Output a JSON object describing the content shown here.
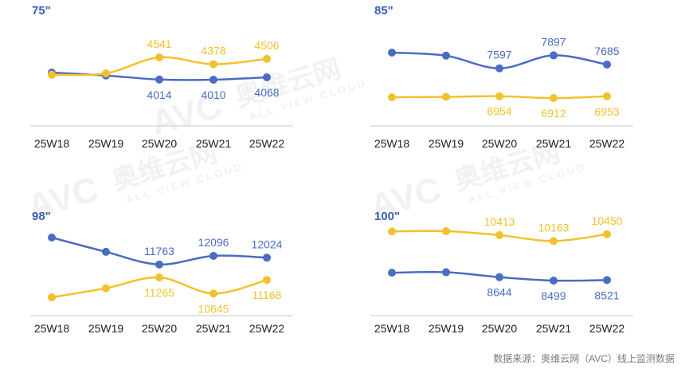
{
  "colors": {
    "series_a": "#4a6cc2",
    "series_b": "#f2c12e",
    "axis": "#c9c9c9"
  },
  "watermark": {
    "logo": "AVC",
    "name": "奥维云网",
    "tagline": "ALL VIEW CLOUD"
  },
  "source": "数据来源：奥维云网（AVC）线上监测数据",
  "chart_data": [
    {
      "type": "line",
      "title": "75\"",
      "categories": [
        "25W18",
        "25W19",
        "25W20",
        "25W21",
        "25W22"
      ],
      "series": [
        {
          "color": "#4a6cc2",
          "values": [
            4180,
            4110,
            4014,
            4010,
            4068
          ],
          "labels": [
            "",
            "",
            "4014",
            "4010",
            "4068"
          ],
          "label_position": "below"
        },
        {
          "color": "#f2c12e",
          "values": [
            4130,
            4160,
            4541,
            4378,
            4506
          ],
          "labels": [
            "",
            "",
            "4541",
            "4378",
            "4506"
          ],
          "label_position": "above"
        }
      ]
    },
    {
      "type": "line",
      "title": "85\"",
      "categories": [
        "25W18",
        "25W19",
        "25W20",
        "25W21",
        "25W22"
      ],
      "series": [
        {
          "color": "#4a6cc2",
          "values": [
            7960,
            7890,
            7597,
            7897,
            7685
          ],
          "labels": [
            "",
            "",
            "7597",
            "7897",
            "7685"
          ],
          "label_position": "above"
        },
        {
          "color": "#f2c12e",
          "values": [
            6930,
            6940,
            6954,
            6912,
            6953
          ],
          "labels": [
            "",
            "",
            "6954",
            "6912",
            "6953"
          ],
          "label_position": "below"
        }
      ]
    },
    {
      "type": "line",
      "title": "98\"",
      "categories": [
        "25W18",
        "25W19",
        "25W20",
        "25W21",
        "25W22"
      ],
      "series": [
        {
          "color": "#4a6cc2",
          "values": [
            12800,
            12250,
            11763,
            12096,
            12024
          ],
          "labels": [
            "",
            "",
            "11763",
            "12096",
            "12024"
          ],
          "label_position": "above"
        },
        {
          "color": "#f2c12e",
          "values": [
            10500,
            10850,
            11265,
            10645,
            11168
          ],
          "labels": [
            "",
            "",
            "11265",
            "10645",
            "11168"
          ],
          "label_position": "below"
        }
      ]
    },
    {
      "type": "line",
      "title": "100\"",
      "categories": [
        "25W18",
        "25W19",
        "25W20",
        "25W21",
        "25W22"
      ],
      "series": [
        {
          "color": "#f2c12e",
          "values": [
            10570,
            10580,
            10413,
            10163,
            10450
          ],
          "labels": [
            "",
            "",
            "10413",
            "10163",
            "10450"
          ],
          "label_position": "above"
        },
        {
          "color": "#4a6cc2",
          "values": [
            8830,
            8850,
            8644,
            8499,
            8521
          ],
          "labels": [
            "",
            "",
            "8644",
            "8499",
            "8521"
          ],
          "label_position": "below"
        }
      ]
    }
  ]
}
